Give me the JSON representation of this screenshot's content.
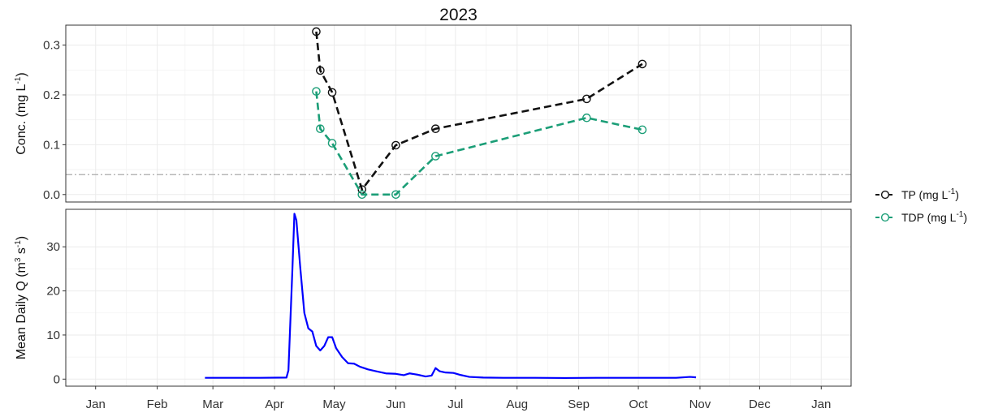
{
  "title": "2023",
  "colors": {
    "tp": "#111111",
    "tdp": "#1b9e77",
    "flow": "#0000ff",
    "threshold": "#aaaaaa",
    "grid": "#ebebeb",
    "panel_border": "#333333"
  },
  "legend": {
    "position": "right",
    "entries": [
      {
        "base": "TP (mg L",
        "sup": "-1",
        "close": ")"
      },
      {
        "base": "TDP (mg L",
        "sup": "-1",
        "close": ")"
      }
    ]
  },
  "chart_data": [
    {
      "type": "line",
      "panel": "top",
      "ylabel": {
        "base": "Conc. (mg L",
        "sup": "-1",
        "close": ")"
      },
      "xlim": [
        "2022-12-17",
        "2024-01-16"
      ],
      "ylim": [
        -0.015,
        0.34
      ],
      "yticks": [
        0.0,
        0.1,
        0.2,
        0.3
      ],
      "ytick_labels": [
        "0.0",
        "0.1",
        "0.2",
        "0.3"
      ],
      "reference_line_y": 0.04,
      "grid": true,
      "series": [
        {
          "name": "TP (mg L-1)",
          "linestyle": "dashed",
          "marker": "open-circle",
          "x": [
            "2023-04-22",
            "2023-04-24",
            "2023-04-30",
            "2023-05-15",
            "2023-06-01",
            "2023-06-21",
            "2023-09-05",
            "2023-10-03"
          ],
          "y": [
            0.327,
            0.249,
            0.205,
            0.01,
            0.099,
            0.132,
            0.192,
            0.262
          ]
        },
        {
          "name": "TDP (mg L-1)",
          "linestyle": "dashed",
          "marker": "open-circle",
          "x": [
            "2023-04-22",
            "2023-04-24",
            "2023-04-30",
            "2023-05-15",
            "2023-06-01",
            "2023-06-21",
            "2023-09-05",
            "2023-10-03"
          ],
          "y": [
            0.207,
            0.132,
            0.103,
            0.0,
            0.0,
            0.077,
            0.154,
            0.13
          ]
        }
      ]
    },
    {
      "type": "line",
      "panel": "bottom",
      "ylabel": {
        "base": "Mean Daily Q (m",
        "sup1": "3",
        "mid": " s",
        "sup2": "-1",
        "close": ")"
      },
      "xlim": [
        "2022-12-17",
        "2024-01-16"
      ],
      "ylim": [
        -1.6,
        38.5
      ],
      "yticks": [
        0,
        10,
        20,
        30
      ],
      "ytick_labels": [
        "0",
        "10",
        "20",
        "30"
      ],
      "grid": true,
      "series": [
        {
          "name": "Mean Daily Q",
          "x": [
            "2023-02-25",
            "2023-03-10",
            "2023-03-25",
            "2023-04-07",
            "2023-04-08",
            "2023-04-10",
            "2023-04-11",
            "2023-04-12",
            "2023-04-14",
            "2023-04-16",
            "2023-04-18",
            "2023-04-20",
            "2023-04-22",
            "2023-04-24",
            "2023-04-26",
            "2023-04-28",
            "2023-04-30",
            "2023-05-02",
            "2023-05-05",
            "2023-05-08",
            "2023-05-11",
            "2023-05-14",
            "2023-05-18",
            "2023-05-22",
            "2023-05-27",
            "2023-06-01",
            "2023-06-05",
            "2023-06-08",
            "2023-06-12",
            "2023-06-16",
            "2023-06-19",
            "2023-06-21",
            "2023-06-23",
            "2023-06-26",
            "2023-06-30",
            "2023-07-03",
            "2023-07-08",
            "2023-07-15",
            "2023-07-25",
            "2023-08-10",
            "2023-08-25",
            "2023-09-10",
            "2023-09-25",
            "2023-10-10",
            "2023-10-20",
            "2023-10-27",
            "2023-10-30"
          ],
          "y": [
            0.3,
            0.3,
            0.3,
            0.35,
            2,
            25,
            37.5,
            36,
            25,
            15,
            11.5,
            10.8,
            7.5,
            6.5,
            7.5,
            9.5,
            9.5,
            7,
            5,
            3.6,
            3.5,
            2.8,
            2.2,
            1.8,
            1.3,
            1.2,
            0.9,
            1.3,
            1.0,
            0.6,
            0.8,
            2.5,
            1.8,
            1.5,
            1.4,
            1.0,
            0.5,
            0.35,
            0.3,
            0.3,
            0.25,
            0.3,
            0.3,
            0.3,
            0.3,
            0.5,
            0.4
          ]
        }
      ]
    }
  ],
  "x_axis": {
    "ticks": [
      "2023-01-01",
      "2023-02-01",
      "2023-03-01",
      "2023-04-01",
      "2023-05-01",
      "2023-06-01",
      "2023-07-01",
      "2023-08-01",
      "2023-09-01",
      "2023-10-01",
      "2023-11-01",
      "2023-12-01",
      "2024-01-01"
    ],
    "labels": [
      "Jan",
      "Feb",
      "Mar",
      "Apr",
      "May",
      "Jun",
      "Jul",
      "Aug",
      "Sep",
      "Oct",
      "Nov",
      "Dec",
      "Jan"
    ]
  }
}
